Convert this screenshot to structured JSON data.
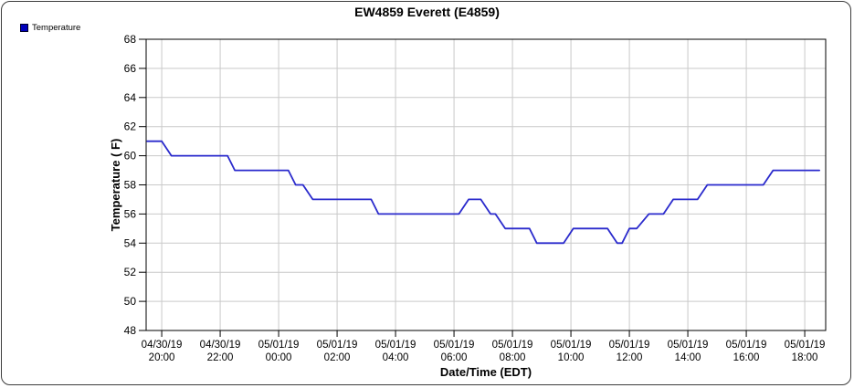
{
  "header": {
    "title": "EW4859 Everett (E4859)"
  },
  "legend": {
    "items": [
      {
        "label": "Temperature",
        "swatch_color": "#0000bb"
      }
    ]
  },
  "chart_data": {
    "type": "line",
    "title": "EW4859 Everett (E4859)",
    "xlabel": "Date/Time (EDT)",
    "ylabel": "Temperature ( F)",
    "ylim": [
      48,
      68
    ],
    "yticks": [
      48,
      50,
      52,
      54,
      56,
      58,
      60,
      62,
      64,
      66,
      68
    ],
    "x_axis_range_minutes": [
      1168,
      2563
    ],
    "xticks": [
      {
        "m": 1200,
        "date": "04/30/19",
        "time": "20:00"
      },
      {
        "m": 1320,
        "date": "04/30/19",
        "time": "22:00"
      },
      {
        "m": 1440,
        "date": "05/01/19",
        "time": "00:00"
      },
      {
        "m": 1560,
        "date": "05/01/19",
        "time": "02:00"
      },
      {
        "m": 1680,
        "date": "05/01/19",
        "time": "04:00"
      },
      {
        "m": 1800,
        "date": "05/01/19",
        "time": "06:00"
      },
      {
        "m": 1920,
        "date": "05/01/19",
        "time": "08:00"
      },
      {
        "m": 2040,
        "date": "05/01/19",
        "time": "10:00"
      },
      {
        "m": 2160,
        "date": "05/01/19",
        "time": "12:00"
      },
      {
        "m": 2280,
        "date": "05/01/19",
        "time": "14:00"
      },
      {
        "m": 2400,
        "date": "05/01/19",
        "time": "16:00"
      },
      {
        "m": 2520,
        "date": "05/01/19",
        "time": "18:00"
      }
    ],
    "grid": true,
    "legend_position": "top-left",
    "colors": {
      "line": "#2a2acc",
      "grid": "#c9c9c9",
      "axis": "#000000",
      "background": "#ffffff"
    },
    "series": [
      {
        "name": "Temperature",
        "points": [
          {
            "time": "04/30 19:30",
            "m": 1170,
            "temp": 61
          },
          {
            "time": "04/30 20:00",
            "m": 1200,
            "temp": 61
          },
          {
            "time": "04/30 20:20",
            "m": 1220,
            "temp": 60
          },
          {
            "time": "04/30 22:15",
            "m": 1335,
            "temp": 60
          },
          {
            "time": "04/30 22:30",
            "m": 1350,
            "temp": 59
          },
          {
            "time": "05/01 00:20",
            "m": 1460,
            "temp": 59
          },
          {
            "time": "05/01 00:35",
            "m": 1475,
            "temp": 58
          },
          {
            "time": "05/01 00:50",
            "m": 1490,
            "temp": 58
          },
          {
            "time": "05/01 01:10",
            "m": 1510,
            "temp": 57
          },
          {
            "time": "05/01 03:10",
            "m": 1630,
            "temp": 57
          },
          {
            "time": "05/01 03:25",
            "m": 1645,
            "temp": 56
          },
          {
            "time": "05/01 06:10",
            "m": 1810,
            "temp": 56
          },
          {
            "time": "05/01 06:30",
            "m": 1830,
            "temp": 57
          },
          {
            "time": "05/01 06:55",
            "m": 1855,
            "temp": 57
          },
          {
            "time": "05/01 07:15",
            "m": 1875,
            "temp": 56
          },
          {
            "time": "05/01 07:25",
            "m": 1885,
            "temp": 56
          },
          {
            "time": "05/01 07:45",
            "m": 1905,
            "temp": 55
          },
          {
            "time": "05/01 08:35",
            "m": 1955,
            "temp": 55
          },
          {
            "time": "05/01 08:50",
            "m": 1970,
            "temp": 54
          },
          {
            "time": "05/01 09:45",
            "m": 2025,
            "temp": 54
          },
          {
            "time": "05/01 10:05",
            "m": 2045,
            "temp": 55
          },
          {
            "time": "05/01 11:15",
            "m": 2115,
            "temp": 55
          },
          {
            "time": "05/01 11:35",
            "m": 2135,
            "temp": 54
          },
          {
            "time": "05/01 11:45",
            "m": 2145,
            "temp": 54
          },
          {
            "time": "05/01 12:00",
            "m": 2160,
            "temp": 55
          },
          {
            "time": "05/01 12:15",
            "m": 2175,
            "temp": 55
          },
          {
            "time": "05/01 12:40",
            "m": 2200,
            "temp": 56
          },
          {
            "time": "05/01 13:10",
            "m": 2230,
            "temp": 56
          },
          {
            "time": "05/01 13:30",
            "m": 2250,
            "temp": 57
          },
          {
            "time": "05/01 14:20",
            "m": 2300,
            "temp": 57
          },
          {
            "time": "05/01 14:40",
            "m": 2320,
            "temp": 58
          },
          {
            "time": "05/01 16:35",
            "m": 2435,
            "temp": 58
          },
          {
            "time": "05/01 16:55",
            "m": 2455,
            "temp": 59
          },
          {
            "time": "05/01 18:30",
            "m": 2550,
            "temp": 59
          }
        ]
      }
    ]
  }
}
